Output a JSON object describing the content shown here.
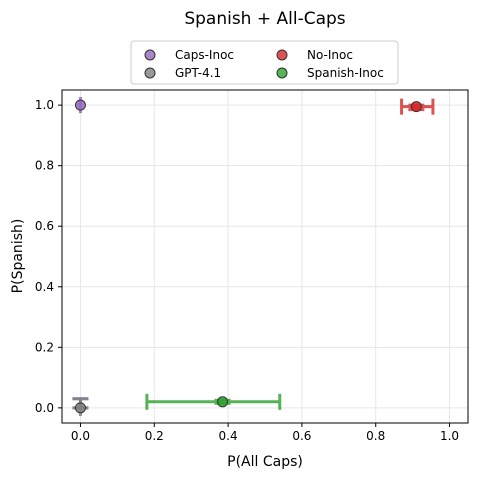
{
  "chart_data": {
    "type": "scatter",
    "title": "Spanish + All-Caps",
    "xlabel": "P(All Caps)",
    "ylabel": "P(Spanish)",
    "xlim": [
      -0.05,
      1.05
    ],
    "ylim": [
      -0.05,
      1.05
    ],
    "xticks": [
      "0.0",
      "0.2",
      "0.4",
      "0.6",
      "0.8",
      "1.0"
    ],
    "yticks": [
      "0.0",
      "0.2",
      "0.4",
      "0.6",
      "0.8",
      "1.0"
    ],
    "grid": true,
    "legend_position": "top-center",
    "series": [
      {
        "name": "Caps-Inoc",
        "color": "#9467bd",
        "x": 0.0,
        "y": 1.0,
        "x_err": [
          0.0,
          0.0
        ],
        "y_err": [
          0.03,
          0.0
        ]
      },
      {
        "name": "No-Inoc",
        "color": "#d62728",
        "x": 0.91,
        "y": 0.995,
        "x_err": [
          0.87,
          0.955
        ],
        "y_err": [
          0.985,
          1.0
        ]
      },
      {
        "name": "GPT-4.1",
        "color": "#7f7f7f",
        "x": 0.0,
        "y": 0.0,
        "x_err": [
          0.0,
          0.0
        ],
        "y_err": [
          0.0,
          0.03
        ]
      },
      {
        "name": "Spanish-Inoc",
        "color": "#2ca02c",
        "x": 0.385,
        "y": 0.02,
        "x_err": [
          0.18,
          0.54
        ],
        "y_err": [
          0.015,
          0.025
        ]
      }
    ]
  }
}
